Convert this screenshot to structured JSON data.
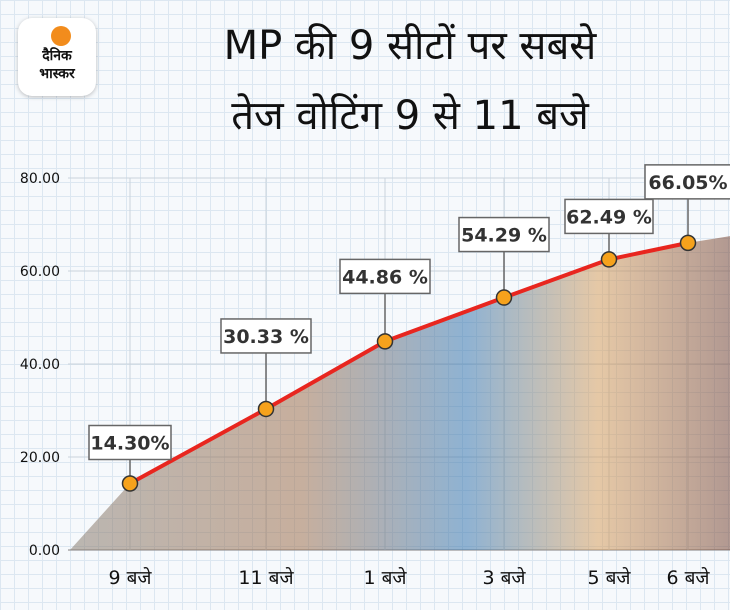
{
  "header": {
    "logo_line1": "दैनिक",
    "logo_line2": "भास्कर",
    "title_line1": "MP की 9 सीटों पर सबसे",
    "title_line2": "तेज वोटिंग 9 से 11 बजे"
  },
  "colors": {
    "line": "#e8261f",
    "point": "#f6a21c",
    "point_stroke": "#333333",
    "label_border": "#666666",
    "brand": "#f28c1c"
  },
  "chart_data": {
    "type": "line",
    "title": "MP की 9 सीटों पर सबसे तेज वोटिंग 9 से 11 बजे",
    "xlabel": "",
    "ylabel": "",
    "ylim": [
      0,
      80
    ],
    "yticks": [
      0,
      20,
      40,
      60,
      80
    ],
    "ytick_labels": [
      "0.00",
      "20.00",
      "40.00",
      "60.00",
      "80.00"
    ],
    "grid": true,
    "categories": [
      "9 बजे",
      "11 बजे",
      "1 बजे",
      "3 बजे",
      "5 बजे",
      "6 बजे"
    ],
    "values": [
      14.3,
      30.33,
      44.86,
      54.29,
      62.49,
      66.05
    ],
    "data_labels": [
      "14.30%",
      "30.33 %",
      "44.86 %",
      "54.29 %",
      "62.49 %",
      "66.05%"
    ]
  }
}
